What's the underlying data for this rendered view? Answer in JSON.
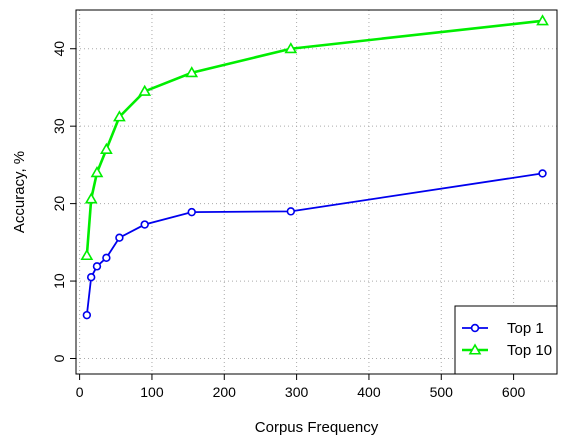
{
  "chart_data": {
    "type": "line",
    "title": "",
    "xlabel": "Corpus Frequency",
    "ylabel": "Accuracy, %",
    "xlim": [
      -5,
      660
    ],
    "ylim": [
      -2,
      45
    ],
    "x_ticks": [
      0,
      100,
      200,
      300,
      400,
      500,
      600
    ],
    "y_ticks": [
      0,
      10,
      20,
      30,
      40
    ],
    "grid": true,
    "legend_position": "bottom-right",
    "series": [
      {
        "name": "Top 1",
        "color": "#0000ee",
        "marker": "circle",
        "x": [
          10,
          16,
          24,
          37,
          55,
          90,
          155,
          292,
          640
        ],
        "y": [
          5.6,
          10.5,
          11.9,
          13.0,
          15.6,
          17.3,
          18.9,
          19.0,
          23.9
        ]
      },
      {
        "name": "Top 10",
        "color": "#00ee00",
        "marker": "triangle",
        "x": [
          10,
          16,
          24,
          37,
          55,
          90,
          155,
          292,
          640
        ],
        "y": [
          13.3,
          20.6,
          24.0,
          27.0,
          31.2,
          34.5,
          36.9,
          40.0,
          43.6
        ]
      }
    ]
  }
}
